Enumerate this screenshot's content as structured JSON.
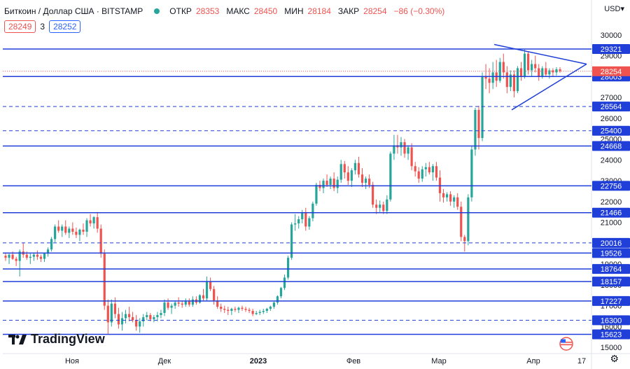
{
  "header": {
    "symbol": "Биткоин / Доллар США · BITSTAMP",
    "open_label": "ОТКР",
    "open_value": "28353",
    "high_label": "МАКС",
    "high_value": "28450",
    "low_label": "МИН",
    "low_value": "28184",
    "close_label": "ЗАКР",
    "close_value": "28254",
    "change": "−86 (−0.30%)"
  },
  "quote": {
    "sell": "28249",
    "spread": "3",
    "buy": "28252"
  },
  "currency": "USD",
  "branding": "TradingView",
  "chart_data": {
    "type": "candlestick",
    "y_axis": {
      "ticks": [
        30000,
        29000,
        28000,
        27000,
        26000,
        25000,
        24000,
        23000,
        22000,
        21000,
        20000,
        19000,
        18000,
        17000,
        16000,
        15000
      ],
      "range": [
        14700,
        30600
      ]
    },
    "x_axis": {
      "ticks": [
        "Ноя",
        "Дек",
        "2023",
        "Фев",
        "Мар",
        "Апр",
        "17"
      ]
    },
    "current_price": 28254,
    "levels": [
      {
        "value": 29321,
        "style": "solid"
      },
      {
        "value": 28003,
        "style": "solid"
      },
      {
        "value": 26564,
        "style": "dashed"
      },
      {
        "value": 25400,
        "style": "dashed"
      },
      {
        "value": 24668,
        "style": "solid"
      },
      {
        "value": 22756,
        "style": "solid"
      },
      {
        "value": 21466,
        "style": "solid"
      },
      {
        "value": 20016,
        "style": "dashed"
      },
      {
        "value": 19526,
        "style": "solid"
      },
      {
        "value": 18764,
        "style": "solid"
      },
      {
        "value": 18157,
        "style": "solid"
      },
      {
        "value": 17227,
        "style": "solid"
      },
      {
        "value": 16300,
        "style": "dashed"
      },
      {
        "value": 15623,
        "style": "solid"
      }
    ],
    "triangle": {
      "upper_start": 29540,
      "lower_start": 26400,
      "apex": 28600
    },
    "candles": [
      [
        19400,
        19550,
        19150,
        19300
      ],
      [
        19300,
        19500,
        19000,
        19450
      ],
      [
        19450,
        19600,
        19200,
        19250
      ],
      [
        19250,
        19350,
        18900,
        19150
      ],
      [
        19150,
        19700,
        18400,
        19600
      ],
      [
        19600,
        20000,
        19300,
        19450
      ],
      [
        19450,
        19600,
        19200,
        19300
      ],
      [
        19300,
        19500,
        19000,
        19350
      ],
      [
        19350,
        19550,
        19150,
        19450
      ],
      [
        19450,
        19650,
        19200,
        19350
      ],
      [
        19350,
        19450,
        19100,
        19250
      ],
      [
        19250,
        19550,
        19100,
        19500
      ],
      [
        19500,
        19800,
        19350,
        19700
      ],
      [
        19700,
        20300,
        19600,
        20200
      ],
      [
        20200,
        20900,
        20050,
        20800
      ],
      [
        20800,
        21100,
        20500,
        20600
      ],
      [
        20600,
        20900,
        20300,
        20800
      ],
      [
        20800,
        21100,
        20400,
        20500
      ],
      [
        20500,
        20800,
        20250,
        20700
      ],
      [
        20700,
        21000,
        20400,
        20550
      ],
      [
        20550,
        20750,
        20250,
        20400
      ],
      [
        20400,
        20700,
        20100,
        20650
      ],
      [
        20650,
        20950,
        20400,
        20550
      ],
      [
        20550,
        21200,
        20300,
        21100
      ],
      [
        21100,
        21400,
        20800,
        20950
      ],
      [
        20950,
        21300,
        20700,
        21250
      ],
      [
        21250,
        21500,
        20500,
        20700
      ],
      [
        20700,
        20900,
        19300,
        19500
      ],
      [
        19500,
        19700,
        16800,
        17000
      ],
      [
        17000,
        17300,
        15650,
        16200
      ],
      [
        16200,
        17300,
        16000,
        17100
      ],
      [
        17100,
        17400,
        16400,
        16600
      ],
      [
        16600,
        16900,
        15900,
        16100
      ],
      [
        16100,
        16700,
        15800,
        16400
      ],
      [
        16400,
        16800,
        16150,
        16600
      ],
      [
        16600,
        16950,
        16250,
        16450
      ],
      [
        16450,
        16700,
        16200,
        16300
      ],
      [
        16300,
        16550,
        15800,
        16000
      ],
      [
        16000,
        16400,
        15700,
        16250
      ],
      [
        16250,
        16600,
        16000,
        16450
      ],
      [
        16450,
        16700,
        16300,
        16550
      ],
      [
        16550,
        16650,
        16250,
        16350
      ],
      [
        16350,
        16550,
        16200,
        16450
      ],
      [
        16450,
        16700,
        16250,
        16550
      ],
      [
        16550,
        16800,
        16400,
        16650
      ],
      [
        16650,
        17300,
        16500,
        17150
      ],
      [
        17150,
        17350,
        16800,
        16900
      ],
      [
        16900,
        17100,
        16600,
        17000
      ],
      [
        17000,
        17250,
        16850,
        17150
      ],
      [
        17150,
        17400,
        16950,
        17100
      ],
      [
        17100,
        17250,
        16900,
        17050
      ],
      [
        17050,
        17350,
        16950,
        17200
      ],
      [
        17200,
        17350,
        16950,
        17050
      ],
      [
        17050,
        17450,
        16950,
        17300
      ],
      [
        17300,
        17450,
        17050,
        17150
      ],
      [
        17150,
        17550,
        17100,
        17500
      ],
      [
        17500,
        17800,
        17250,
        17350
      ],
      [
        17350,
        18400,
        17200,
        18150
      ],
      [
        18150,
        18350,
        17700,
        17800
      ],
      [
        17800,
        17950,
        17050,
        17250
      ],
      [
        17250,
        17450,
        16850,
        16950
      ],
      [
        16950,
        17100,
        16700,
        16850
      ],
      [
        16850,
        17000,
        16650,
        16800
      ],
      [
        16800,
        16950,
        16550,
        16750
      ],
      [
        16750,
        16900,
        16550,
        16850
      ],
      [
        16850,
        16950,
        16700,
        16800
      ],
      [
        16800,
        16950,
        16650,
        16900
      ],
      [
        16900,
        17000,
        16750,
        16850
      ],
      [
        16850,
        16950,
        16700,
        16800
      ],
      [
        16800,
        16900,
        16650,
        16750
      ],
      [
        16750,
        16850,
        16500,
        16600
      ],
      [
        16600,
        16750,
        16550,
        16650
      ],
      [
        16650,
        16800,
        16550,
        16700
      ],
      [
        16700,
        16850,
        16600,
        16750
      ],
      [
        16750,
        16900,
        16650,
        16850
      ],
      [
        16850,
        17000,
        16750,
        16950
      ],
      [
        16950,
        17200,
        16850,
        17150
      ],
      [
        17150,
        17500,
        17050,
        17450
      ],
      [
        17450,
        17900,
        17350,
        17850
      ],
      [
        17850,
        18500,
        17750,
        18350
      ],
      [
        18350,
        19400,
        18250,
        19300
      ],
      [
        19300,
        21000,
        19200,
        20900
      ],
      [
        20900,
        21400,
        20600,
        20950
      ],
      [
        20950,
        21300,
        20700,
        21150
      ],
      [
        21150,
        21600,
        20950,
        21450
      ],
      [
        21450,
        21700,
        20600,
        20800
      ],
      [
        20800,
        21300,
        20650,
        21200
      ],
      [
        21200,
        22000,
        21050,
        21900
      ],
      [
        21900,
        22900,
        21800,
        22800
      ],
      [
        22800,
        23000,
        22500,
        22650
      ],
      [
        22650,
        23100,
        22400,
        23000
      ],
      [
        23000,
        23300,
        22700,
        22800
      ],
      [
        22800,
        23200,
        22600,
        23100
      ],
      [
        23100,
        23400,
        22500,
        22650
      ],
      [
        22650,
        23200,
        22400,
        23050
      ],
      [
        23050,
        24000,
        22900,
        23800
      ],
      [
        23800,
        23950,
        23100,
        23400
      ],
      [
        23400,
        23700,
        22800,
        23000
      ],
      [
        23000,
        23600,
        22700,
        23500
      ],
      [
        23500,
        24000,
        23300,
        23850
      ],
      [
        23850,
        24150,
        23150,
        23300
      ],
      [
        23300,
        23600,
        22700,
        22900
      ],
      [
        22900,
        23200,
        22600,
        23100
      ],
      [
        23100,
        23300,
        22650,
        22800
      ],
      [
        22800,
        22950,
        21700,
        21850
      ],
      [
        21850,
        22100,
        21400,
        21700
      ],
      [
        21700,
        22050,
        21500,
        21850
      ],
      [
        21850,
        22000,
        21400,
        21550
      ],
      [
        21550,
        22300,
        21400,
        22100
      ],
      [
        22100,
        24400,
        22000,
        24300
      ],
      [
        24300,
        25200,
        24000,
        24700
      ],
      [
        24700,
        25200,
        24300,
        24600
      ],
      [
        24600,
        25100,
        24200,
        24850
      ],
      [
        24850,
        25000,
        24100,
        24300
      ],
      [
        24300,
        24700,
        24000,
        24600
      ],
      [
        24600,
        24800,
        23500,
        23700
      ],
      [
        23700,
        23900,
        23200,
        23450
      ],
      [
        23450,
        23650,
        22900,
        23100
      ],
      [
        23100,
        23700,
        22950,
        23550
      ],
      [
        23550,
        23850,
        23200,
        23650
      ],
      [
        23650,
        23900,
        23300,
        23400
      ],
      [
        23400,
        23800,
        23000,
        23700
      ],
      [
        23700,
        23900,
        23000,
        23150
      ],
      [
        23150,
        23500,
        22000,
        22400
      ],
      [
        22400,
        22600,
        21950,
        22200
      ],
      [
        22200,
        22450,
        22000,
        22350
      ],
      [
        22350,
        22500,
        21800,
        22000
      ],
      [
        22000,
        22300,
        21700,
        22200
      ],
      [
        22200,
        22400,
        21600,
        21750
      ],
      [
        21750,
        22000,
        20100,
        20300
      ],
      [
        20300,
        20400,
        19600,
        20100
      ],
      [
        20100,
        22350,
        19900,
        22200
      ],
      [
        22200,
        24700,
        22000,
        24500
      ],
      [
        24500,
        26500,
        24200,
        26400
      ],
      [
        26400,
        26600,
        24500,
        25050
      ],
      [
        25050,
        28200,
        24900,
        28000
      ],
      [
        28000,
        28600,
        27400,
        27900
      ],
      [
        27900,
        28400,
        27200,
        27700
      ],
      [
        27700,
        28700,
        27400,
        28200
      ],
      [
        28200,
        28800,
        27500,
        27800
      ],
      [
        27800,
        28900,
        27700,
        28700
      ],
      [
        28700,
        29100,
        27900,
        28200
      ],
      [
        28200,
        28500,
        27200,
        27500
      ],
      [
        27500,
        28300,
        27300,
        28100
      ],
      [
        28100,
        28300,
        27000,
        27300
      ],
      [
        27300,
        28500,
        27200,
        28400
      ],
      [
        28400,
        28700,
        27800,
        28000
      ],
      [
        28000,
        29300,
        27900,
        29100
      ],
      [
        29100,
        29200,
        28100,
        28300
      ],
      [
        28300,
        28800,
        28000,
        28600
      ],
      [
        28600,
        29000,
        28200,
        28400
      ],
      [
        28400,
        28600,
        27800,
        28000
      ],
      [
        28000,
        28500,
        27900,
        28400
      ],
      [
        28400,
        28700,
        28000,
        28100
      ],
      [
        28100,
        28400,
        27900,
        28300
      ],
      [
        28300,
        28400,
        28000,
        28200
      ],
      [
        28200,
        28450,
        28050,
        28350
      ],
      [
        28350,
        28450,
        28184,
        28254
      ]
    ]
  }
}
